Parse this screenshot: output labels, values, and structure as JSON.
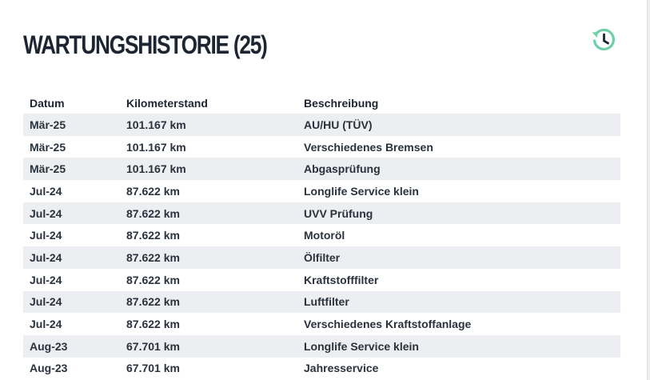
{
  "header": {
    "title": "WARTUNGSHISTORIE (25)",
    "icon": "history-icon",
    "accent_color": "#6fcfa6"
  },
  "table": {
    "columns": [
      "Datum",
      "Kilometerstand",
      "Beschreibung"
    ],
    "rows": [
      [
        "Mär-25",
        "101.167 km",
        "AU/HU (TÜV)"
      ],
      [
        "Mär-25",
        "101.167 km",
        "Verschiedenes Bremsen"
      ],
      [
        "Mär-25",
        "101.167 km",
        "Abgasprüfung"
      ],
      [
        "Jul-24",
        "87.622 km",
        "Longlife Service klein"
      ],
      [
        "Jul-24",
        "87.622 km",
        "UVV Prüfung"
      ],
      [
        "Jul-24",
        "87.622 km",
        "Motoröl"
      ],
      [
        "Jul-24",
        "87.622 km",
        "Ölfilter"
      ],
      [
        "Jul-24",
        "87.622 km",
        "Kraftstofffilter"
      ],
      [
        "Jul-24",
        "87.622 km",
        "Luftfilter"
      ],
      [
        "Jul-24",
        "87.622 km",
        "Verschiedenes Kraftstoffanlage"
      ],
      [
        "Aug-23",
        "67.701 km",
        "Longlife Service klein"
      ],
      [
        "Aug-23",
        "67.701 km",
        "Jahresservice"
      ]
    ]
  }
}
